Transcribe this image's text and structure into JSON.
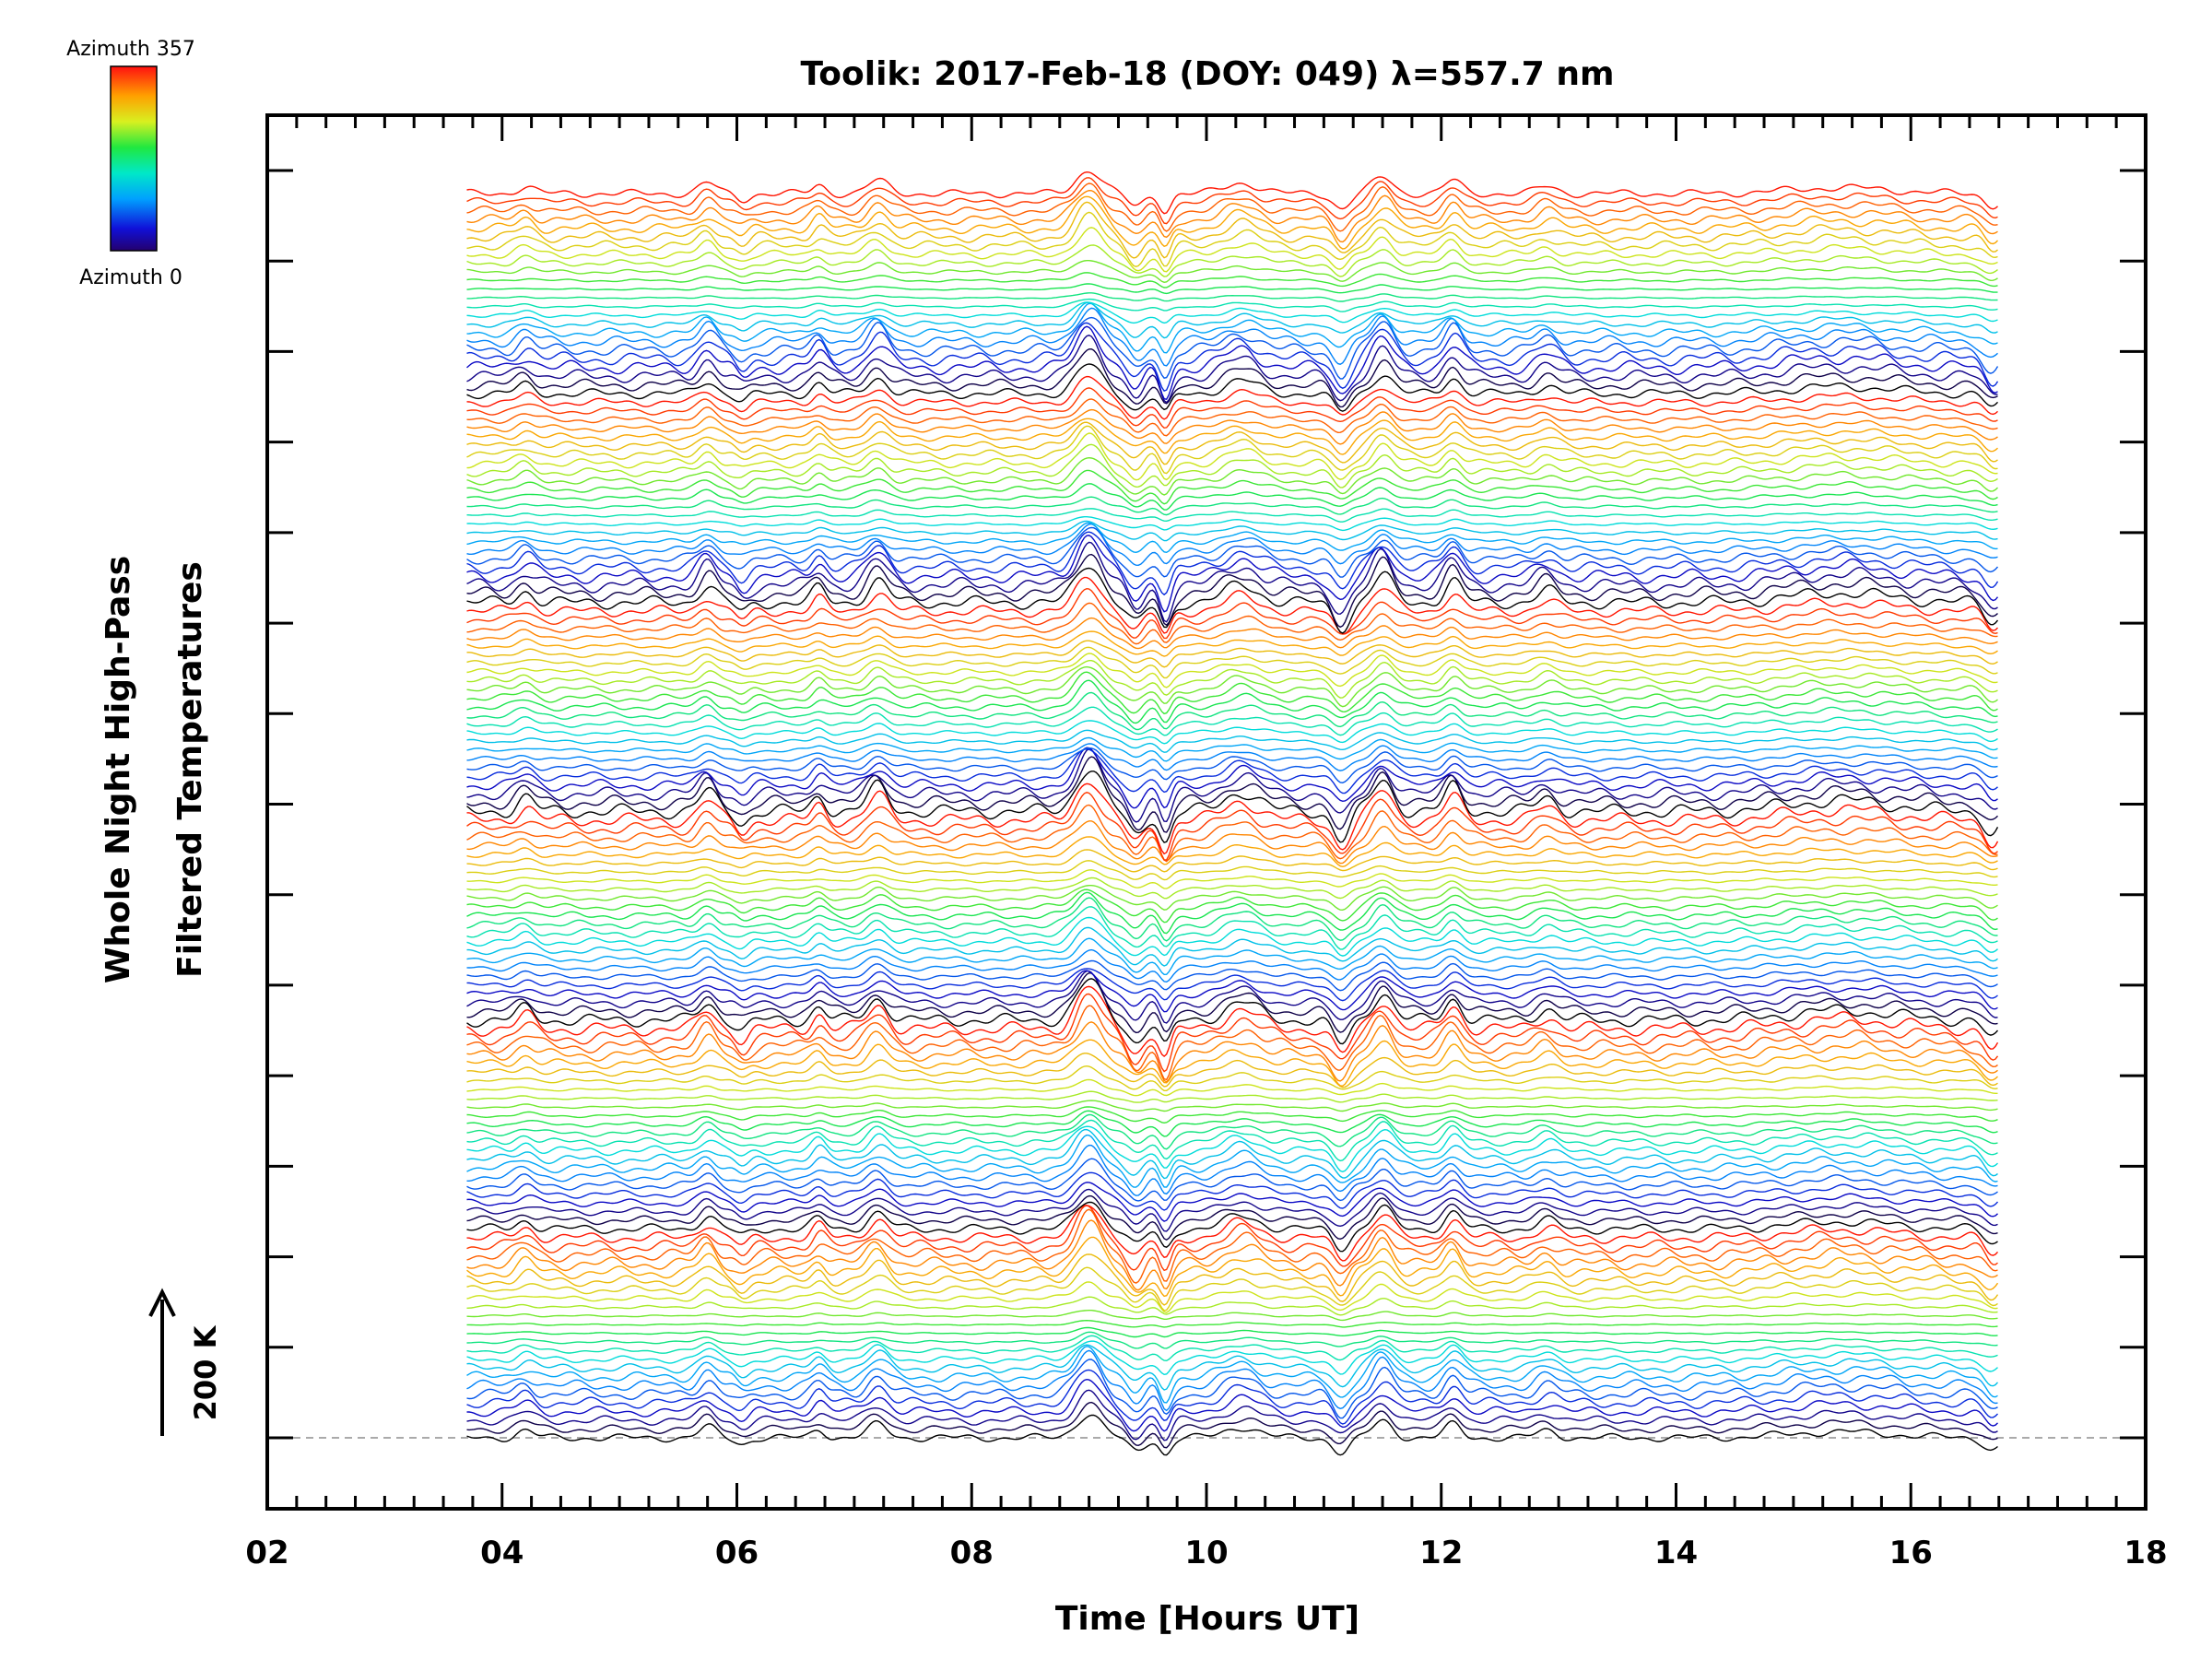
{
  "chart_data": {
    "type": "line",
    "title": "Toolik: 2017-Feb-18 (DOY: 049) λ=557.7 nm",
    "xlabel": "Time [Hours UT]",
    "ylabel_line1": "Whole Night High-Pass",
    "ylabel_line2": "Filtered Temperatures",
    "xlim": [
      2,
      18
    ],
    "x_ticks": [
      "02",
      "04",
      "06",
      "08",
      "10",
      "12",
      "14",
      "16",
      "18"
    ],
    "x_tick_values": [
      2,
      4,
      6,
      8,
      10,
      12,
      14,
      16,
      18
    ],
    "x_minor_step": 0.25,
    "y_ticks_count": 15,
    "scale_bar": {
      "label": "200 K",
      "value_K": 200
    },
    "colorbar": {
      "top_label": "Azimuth 357",
      "bottom_label": "Azimuth 0",
      "azimuth_min": 0,
      "azimuth_max": 357,
      "colormap": "rainbow"
    },
    "series_time_range": [
      3.7,
      16.75
    ],
    "num_traces": 144,
    "trace_groups": 6,
    "traces_per_group": 24,
    "baseline_style": "dashed gray at first trace offset",
    "features": [
      {
        "t": 4.2,
        "amp": 12,
        "width": 0.1
      },
      {
        "t": 5.75,
        "amp": 18,
        "width": 0.1
      },
      {
        "t": 6.05,
        "amp": -10,
        "width": 0.08
      },
      {
        "t": 6.7,
        "amp": 14,
        "width": 0.08
      },
      {
        "t": 7.2,
        "amp": 22,
        "width": 0.12
      },
      {
        "t": 9.0,
        "amp": 40,
        "width": 0.15
      },
      {
        "t": 9.4,
        "amp": -22,
        "width": 0.1
      },
      {
        "t": 9.65,
        "amp": -28,
        "width": 0.07
      },
      {
        "t": 10.3,
        "amp": 18,
        "width": 0.2
      },
      {
        "t": 11.15,
        "amp": -25,
        "width": 0.1
      },
      {
        "t": 11.5,
        "amp": 28,
        "width": 0.12
      },
      {
        "t": 12.1,
        "amp": 22,
        "width": 0.1
      },
      {
        "t": 12.9,
        "amp": 12,
        "width": 0.12
      },
      {
        "t": 15.4,
        "amp": 10,
        "width": 0.6
      },
      {
        "t": 16.7,
        "amp": -20,
        "width": 0.1
      }
    ],
    "colors": {
      "frame": "#000000",
      "baseline": "#aaaaaa",
      "background": "#ffffff"
    }
  }
}
